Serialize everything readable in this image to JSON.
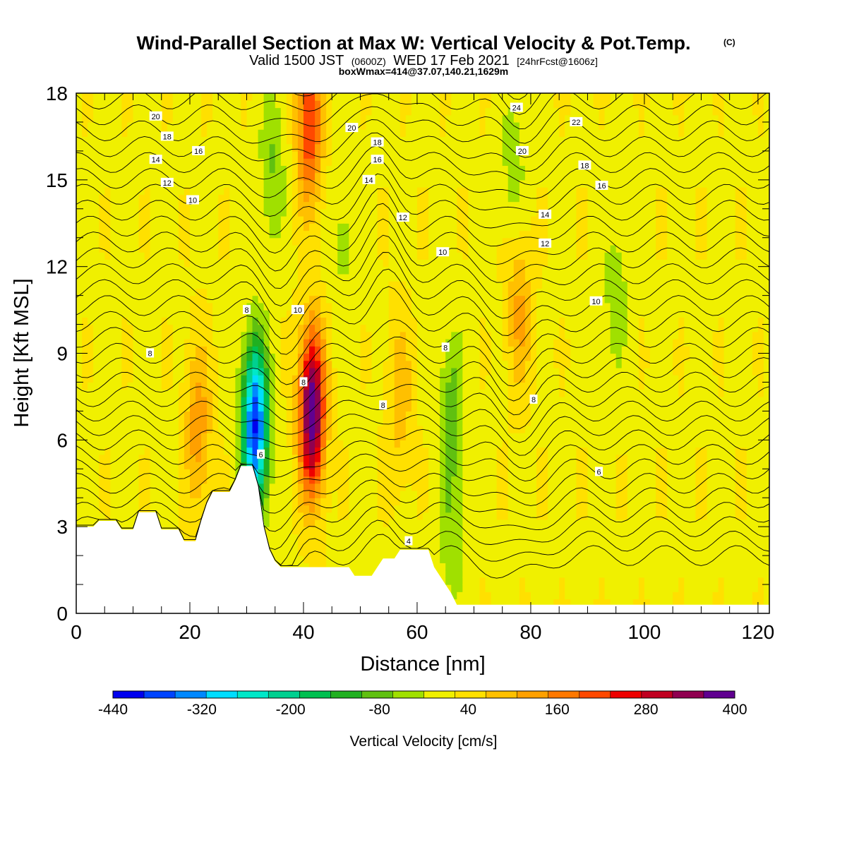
{
  "title": {
    "main": "Wind-Parallel Section at Max W: Vertical Velocity & Pot.Temp.",
    "copyright": "(C)",
    "valid_prefix": "Valid 1500 JST",
    "valid_utc": "(0600Z)",
    "valid_date": "WED 17 Feb 2021",
    "fcst": "[24hrFcst@1606z]",
    "box": "boxWmax=414@37.07,140.21,1629m"
  },
  "chart_data": {
    "type": "heatmap",
    "xlabel": "Distance [nm]",
    "ylabel": "Height [Kft MSL]",
    "xlim": [
      0,
      122
    ],
    "ylim": [
      0,
      18
    ],
    "x_ticks": [
      "0",
      "20",
      "40",
      "60",
      "80",
      "100",
      "120"
    ],
    "x_tick_values": [
      0,
      20,
      40,
      60,
      80,
      100,
      120
    ],
    "y_ticks": [
      "0",
      "3",
      "6",
      "9",
      "12",
      "15",
      "18"
    ],
    "y_tick_values": [
      0,
      3,
      6,
      9,
      12,
      15,
      18
    ],
    "grid": false,
    "field": "Vertical Velocity",
    "colorbar": {
      "title": "Vertical Velocity [cm/s]",
      "labels": [
        "-440",
        "-320",
        "-200",
        "-80",
        "40",
        "160",
        "280",
        "400"
      ],
      "label_values": [
        -440,
        -320,
        -200,
        -80,
        40,
        160,
        280,
        400
      ],
      "bounds": [
        -440,
        400
      ],
      "colors": [
        "#0000ee",
        "#0044ff",
        "#0088ff",
        "#00ddff",
        "#00e8c8",
        "#00d090",
        "#00c050",
        "#20b020",
        "#60c010",
        "#a0e000",
        "#f0f000",
        "#ffe000",
        "#ffc000",
        "#ffa000",
        "#ff7800",
        "#ff4800",
        "#ee0000",
        "#c00020",
        "#900050",
        "#600090"
      ]
    },
    "terrain_kft": [
      [
        0,
        3.0
      ],
      [
        3,
        3.0
      ],
      [
        4,
        3.2
      ],
      [
        7,
        3.2
      ],
      [
        8,
        2.9
      ],
      [
        10,
        2.9
      ],
      [
        11,
        3.5
      ],
      [
        14,
        3.5
      ],
      [
        15,
        2.9
      ],
      [
        18,
        2.9
      ],
      [
        19,
        2.5
      ],
      [
        21,
        2.5
      ],
      [
        22,
        3.2
      ],
      [
        23,
        3.8
      ],
      [
        24,
        4.2
      ],
      [
        27,
        4.2
      ],
      [
        28,
        4.6
      ],
      [
        29,
        5.1
      ],
      [
        31,
        5.1
      ],
      [
        32,
        4.4
      ],
      [
        33,
        3.0
      ],
      [
        34,
        2.2
      ],
      [
        35,
        1.8
      ],
      [
        36,
        1.6
      ],
      [
        48,
        1.6
      ],
      [
        49,
        1.3
      ],
      [
        52,
        1.3
      ],
      [
        53,
        1.6
      ],
      [
        54,
        1.9
      ],
      [
        56,
        1.9
      ],
      [
        57,
        2.2
      ],
      [
        62,
        2.2
      ],
      [
        63,
        1.6
      ],
      [
        65,
        1.0
      ],
      [
        66,
        0.7
      ],
      [
        67,
        0.3
      ],
      [
        122,
        0.3
      ]
    ],
    "velocity_features": [
      {
        "x": 31.5,
        "y": 6.5,
        "w": -420
      },
      {
        "x": 41.5,
        "y": 7.0,
        "w": 400
      },
      {
        "x": 41.0,
        "y": 17.0,
        "w": 220
      },
      {
        "x": 21.5,
        "y": 6.5,
        "w": 120
      },
      {
        "x": 34.5,
        "y": 15.5,
        "w": -80
      },
      {
        "x": 66.0,
        "y": 7.0,
        "w": -100
      },
      {
        "x": 66.0,
        "y": 2.5,
        "w": -60
      },
      {
        "x": 95.0,
        "y": 11.0,
        "w": -60
      },
      {
        "x": 77.0,
        "y": 15.5,
        "w": -60
      },
      {
        "x": 47.0,
        "y": 13.0,
        "w": -50
      },
      {
        "x": 78.0,
        "y": 10.5,
        "w": 100
      },
      {
        "x": 57.0,
        "y": 7.5,
        "w": 80
      }
    ],
    "contours": {
      "variable": "Pot.Temp.",
      "labels": [
        {
          "text": "20",
          "x": 14,
          "y": 17.2
        },
        {
          "text": "18",
          "x": 16,
          "y": 16.5
        },
        {
          "text": "16",
          "x": 21.5,
          "y": 16.0
        },
        {
          "text": "14",
          "x": 14,
          "y": 15.7
        },
        {
          "text": "12",
          "x": 16,
          "y": 14.9
        },
        {
          "text": "10",
          "x": 20.5,
          "y": 14.3
        },
        {
          "text": "8",
          "x": 13,
          "y": 9.0
        },
        {
          "text": "8",
          "x": 30,
          "y": 10.5
        },
        {
          "text": "6",
          "x": 32.5,
          "y": 5.5
        },
        {
          "text": "10",
          "x": 39,
          "y": 10.5
        },
        {
          "text": "8",
          "x": 40,
          "y": 8.0
        },
        {
          "text": "20",
          "x": 48.5,
          "y": 16.8
        },
        {
          "text": "18",
          "x": 53,
          "y": 16.3
        },
        {
          "text": "16",
          "x": 53,
          "y": 15.7
        },
        {
          "text": "14",
          "x": 51.5,
          "y": 15.0
        },
        {
          "text": "12",
          "x": 57.5,
          "y": 13.7
        },
        {
          "text": "10",
          "x": 64.5,
          "y": 12.5
        },
        {
          "text": "8",
          "x": 54,
          "y": 7.2
        },
        {
          "text": "8",
          "x": 65,
          "y": 9.2
        },
        {
          "text": "4",
          "x": 58.5,
          "y": 2.5
        },
        {
          "text": "24",
          "x": 77.5,
          "y": 17.5
        },
        {
          "text": "22",
          "x": 88,
          "y": 17.0
        },
        {
          "text": "20",
          "x": 78.5,
          "y": 16.0
        },
        {
          "text": "18",
          "x": 89.5,
          "y": 15.5
        },
        {
          "text": "16",
          "x": 92.5,
          "y": 14.8
        },
        {
          "text": "14",
          "x": 82.5,
          "y": 13.8
        },
        {
          "text": "12",
          "x": 82.5,
          "y": 12.8
        },
        {
          "text": "10",
          "x": 91.5,
          "y": 10.8
        },
        {
          "text": "8",
          "x": 80.5,
          "y": 7.4
        },
        {
          "text": "6",
          "x": 92,
          "y": 4.9
        }
      ]
    }
  }
}
